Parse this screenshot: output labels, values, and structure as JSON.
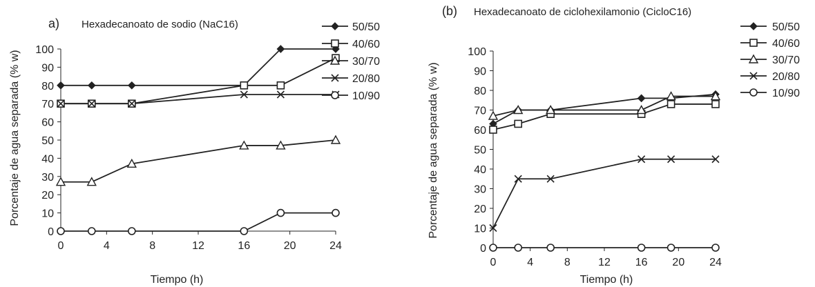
{
  "figure": {
    "ink_color": "#222222",
    "background": "#ffffff"
  },
  "chart_data": [
    {
      "type": "line",
      "panel_label": "a)",
      "title": "Hexadecanoato de sodio (NaC16)",
      "xlabel": "Tiempo (h)",
      "ylabel": "Porcentaje de agua separada (% w)",
      "xlim": [
        0,
        24
      ],
      "ylim": [
        0,
        100
      ],
      "xticks": [
        0,
        4,
        8,
        12,
        16,
        20,
        24
      ],
      "yticks": [
        0,
        10,
        20,
        30,
        40,
        50,
        60,
        70,
        80,
        90,
        100
      ],
      "x": [
        0,
        2.7,
        6.2,
        16,
        19.2,
        24
      ],
      "grid": false,
      "legend_position": "right",
      "series": [
        {
          "name": "50/50",
          "marker": "filled-diamond",
          "values": [
            80,
            80,
            80,
            80,
            100,
            100
          ]
        },
        {
          "name": "40/60",
          "marker": "open-square",
          "values": [
            70,
            70,
            70,
            80,
            80,
            95
          ]
        },
        {
          "name": "30/70",
          "marker": "open-triangle",
          "values": [
            27,
            27,
            37,
            47,
            47,
            50
          ]
        },
        {
          "name": "20/80",
          "marker": "cross",
          "values": [
            70,
            70,
            70,
            75,
            75,
            75
          ]
        },
        {
          "name": "10/90",
          "marker": "open-circle",
          "values": [
            0,
            0,
            0,
            0,
            10,
            10
          ]
        }
      ]
    },
    {
      "type": "line",
      "panel_label": "(b)",
      "title": "Hexadecanoato de ciclohexilamonio (CicloC16)",
      "xlabel": "Tiempo  (h)",
      "ylabel": "Porcentaje de agua separada (% w)",
      "xlim": [
        0,
        24
      ],
      "ylim": [
        0,
        100
      ],
      "xticks": [
        0,
        4,
        8,
        12,
        16,
        20,
        24
      ],
      "yticks": [
        0,
        10,
        20,
        30,
        40,
        50,
        60,
        70,
        80,
        90,
        100
      ],
      "x": [
        0,
        2.7,
        6.2,
        16,
        19.2,
        24
      ],
      "grid": false,
      "legend_position": "right",
      "series": [
        {
          "name": "50/50",
          "marker": "filled-diamond",
          "values": [
            63,
            70,
            70,
            76,
            76,
            78
          ]
        },
        {
          "name": " 40/60",
          "marker": "open-square",
          "values": [
            60,
            63,
            68,
            68,
            73,
            73
          ]
        },
        {
          "name": "30/70",
          "marker": "open-triangle",
          "values": [
            67,
            70,
            70,
            70,
            77,
            77
          ]
        },
        {
          "name": "20/80",
          "marker": "cross",
          "values": [
            10,
            35,
            35,
            45,
            45,
            45
          ]
        },
        {
          "name": "10/90",
          "marker": "open-circle",
          "values": [
            0,
            0,
            0,
            0,
            0,
            0
          ]
        }
      ]
    }
  ]
}
